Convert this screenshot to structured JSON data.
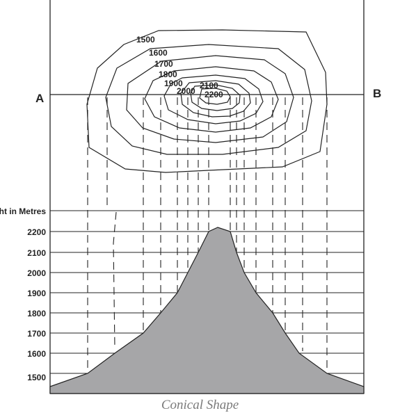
{
  "section_labels": {
    "start": "A",
    "end": "B"
  },
  "contour_labels": [
    "1500",
    "1600",
    "1700",
    "1800",
    "1900",
    "2000",
    "2100",
    "2200"
  ],
  "profile": {
    "axis_title": "Height in Metres",
    "levels": [
      2200,
      2100,
      2000,
      1900,
      1800,
      1700,
      1600,
      1500
    ],
    "level_labels": [
      "2200",
      "2100",
      "2000",
      "1900",
      "1800",
      "1700",
      "1600",
      "1500"
    ]
  },
  "caption": "Conical Shape",
  "colors": {
    "line": "#222222",
    "profile_fill": "#a6a6a8",
    "caption": "#7a7a7a"
  }
}
